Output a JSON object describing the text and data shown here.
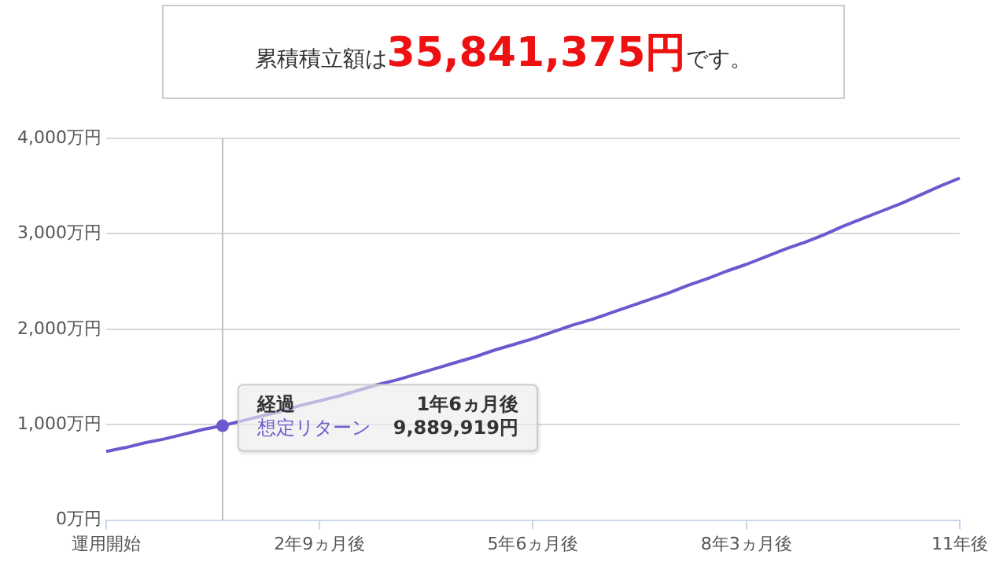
{
  "chart_data": {
    "type": "line",
    "title": "累積積立額は35,841,375円です。",
    "categories": [
      "運用開始",
      null,
      null,
      null,
      null,
      null,
      null,
      null,
      null,
      null,
      null,
      "2年9ヵ月後",
      null,
      null,
      null,
      null,
      null,
      null,
      null,
      null,
      null,
      null,
      "5年6ヵ月後",
      null,
      null,
      null,
      null,
      null,
      null,
      null,
      null,
      null,
      null,
      "8年3ヵ月後",
      null,
      null,
      null,
      null,
      null,
      null,
      null,
      null,
      null,
      null,
      "11年後"
    ],
    "series": [
      {
        "name": "想定リターン",
        "color": "#6a5acd",
        "values": [
          720,
          760,
          810,
          850,
          900,
          950,
          989,
          1040,
          1090,
          1140,
          1200,
          1250,
          1300,
          1360,
          1420,
          1470,
          1530,
          1590,
          1650,
          1710,
          1780,
          1840,
          1900,
          1970,
          2040,
          2100,
          2170,
          2240,
          2310,
          2380,
          2460,
          2530,
          2610,
          2680,
          2760,
          2840,
          2910,
          2990,
          3080,
          3160,
          3240,
          3320,
          3410,
          3500,
          3584
        ]
      }
    ],
    "ylim": [
      0,
      4000
    ],
    "yticks": [
      {
        "value": 0,
        "label": "0万円"
      },
      {
        "value": 1000,
        "label": "1,000万円"
      },
      {
        "value": 2000,
        "label": "2,000万円"
      },
      {
        "value": 3000,
        "label": "3,000万円"
      },
      {
        "value": 4000,
        "label": "4,000万円"
      }
    ],
    "grid": "y",
    "annotations": [
      "経過",
      "1年6ヵ月後",
      "9,889,919円"
    ],
    "marker": "none",
    "line_style": "solid",
    "legend": false
  }
}
